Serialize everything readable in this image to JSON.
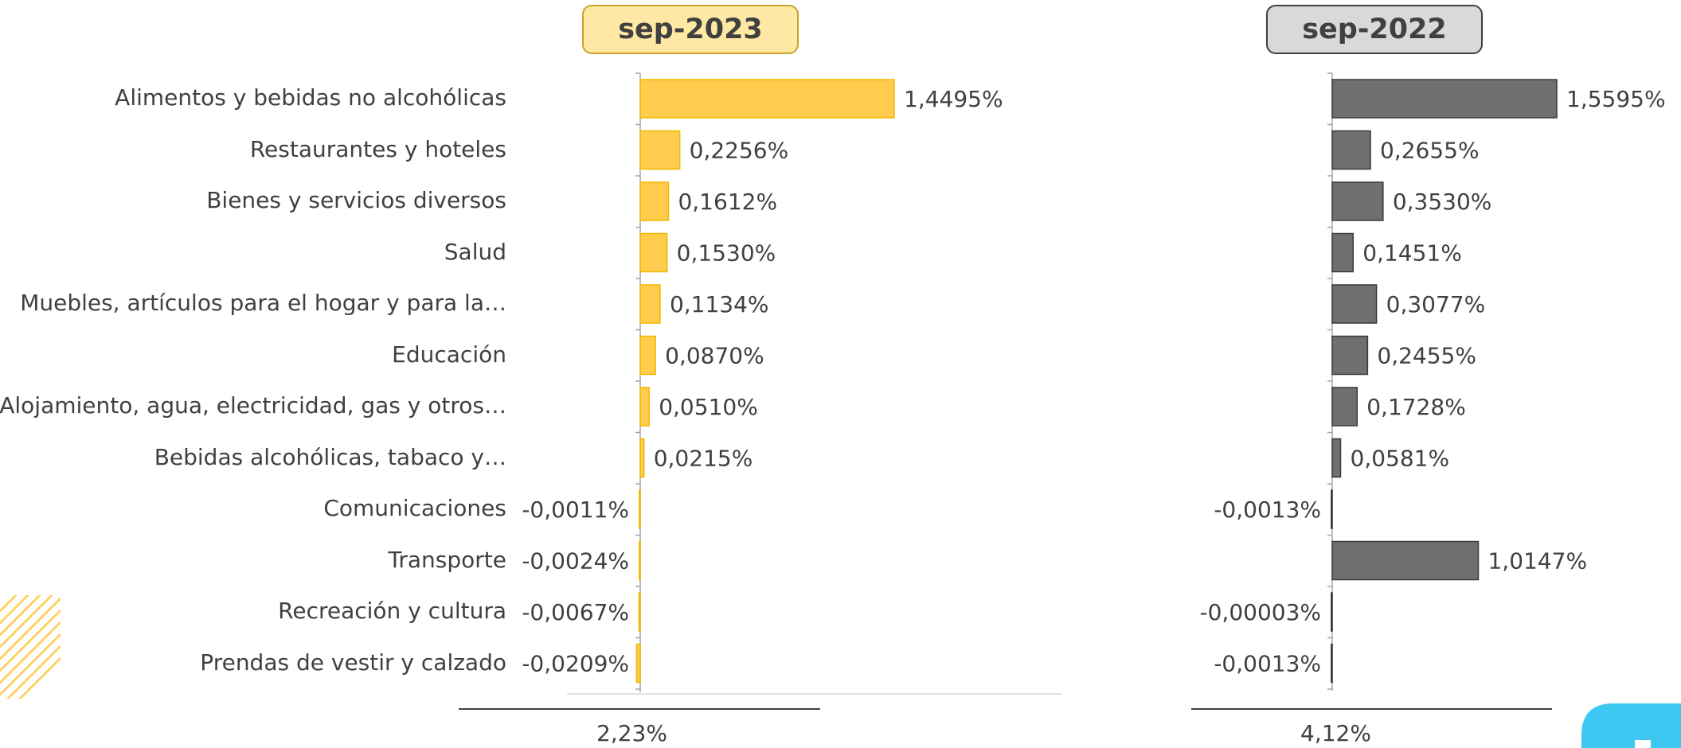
{
  "panels": {
    "sep2023": {
      "title": "sep-2023",
      "total": "2,23%"
    },
    "sep2022": {
      "title": "sep-2022",
      "total": "4,12%"
    }
  },
  "colors": {
    "bar_2023": "#FFCC4D",
    "bar_2023_stroke": "#F0B800",
    "bar_2022": "#716E6E",
    "bar_2022_stroke": "#3A3A3A",
    "text": "#404040"
  },
  "chart_data": [
    {
      "type": "bar",
      "orientation": "horizontal",
      "title": "sep-2023",
      "categories": [
        "Alimentos y bebidas no alcohólicas",
        "Restaurantes y hoteles",
        "Bienes y servicios diversos",
        "Salud",
        "Muebles, artículos para el hogar y para la…",
        "Educación",
        "Alojamiento, agua, electricidad, gas y otros…",
        "Bebidas alcohólicas, tabaco y…",
        "Comunicaciones",
        "Transporte",
        "Recreación y cultura",
        "Prendas de vestir y calzado"
      ],
      "values": [
        1.4495,
        0.2256,
        0.1612,
        0.153,
        0.1134,
        0.087,
        0.051,
        0.0215,
        -0.0011,
        -0.0024,
        -0.0067,
        -0.0209
      ],
      "labels": [
        "1,4495%",
        "0,2256%",
        "0,1612%",
        "0,1530%",
        "0,1134%",
        "0,0870%",
        "0,0510%",
        "0,0215%",
        "-0,0011%",
        "-0,0024%",
        "-0,0067%",
        "-0,0209%"
      ],
      "total": "2,23%",
      "unit": "%"
    },
    {
      "type": "bar",
      "orientation": "horizontal",
      "title": "sep-2022",
      "categories": [
        "Alimentos y bebidas no alcohólicas",
        "Restaurantes y hoteles",
        "Bienes y servicios diversos",
        "Salud",
        "Muebles, artículos para el hogar y para la…",
        "Educación",
        "Alojamiento, agua, electricidad, gas y otros…",
        "Bebidas alcohólicas, tabaco y…",
        "Comunicaciones",
        "Transporte",
        "Recreación y cultura",
        "Prendas de vestir y calzado"
      ],
      "values": [
        1.5595,
        0.2655,
        0.353,
        0.1451,
        0.3077,
        0.2455,
        0.1728,
        0.0581,
        -0.0013,
        1.0147,
        -3e-05,
        -0.0013
      ],
      "labels": [
        "1,5595%",
        "0,2655%",
        "0,3530%",
        "0,1451%",
        "0,3077%",
        "0,2455%",
        "0,1728%",
        "0,0581%",
        "-0,0013%",
        "1,0147%",
        "-0,00003%",
        "-0,0013%"
      ],
      "total": "4,12%",
      "unit": "%"
    }
  ]
}
